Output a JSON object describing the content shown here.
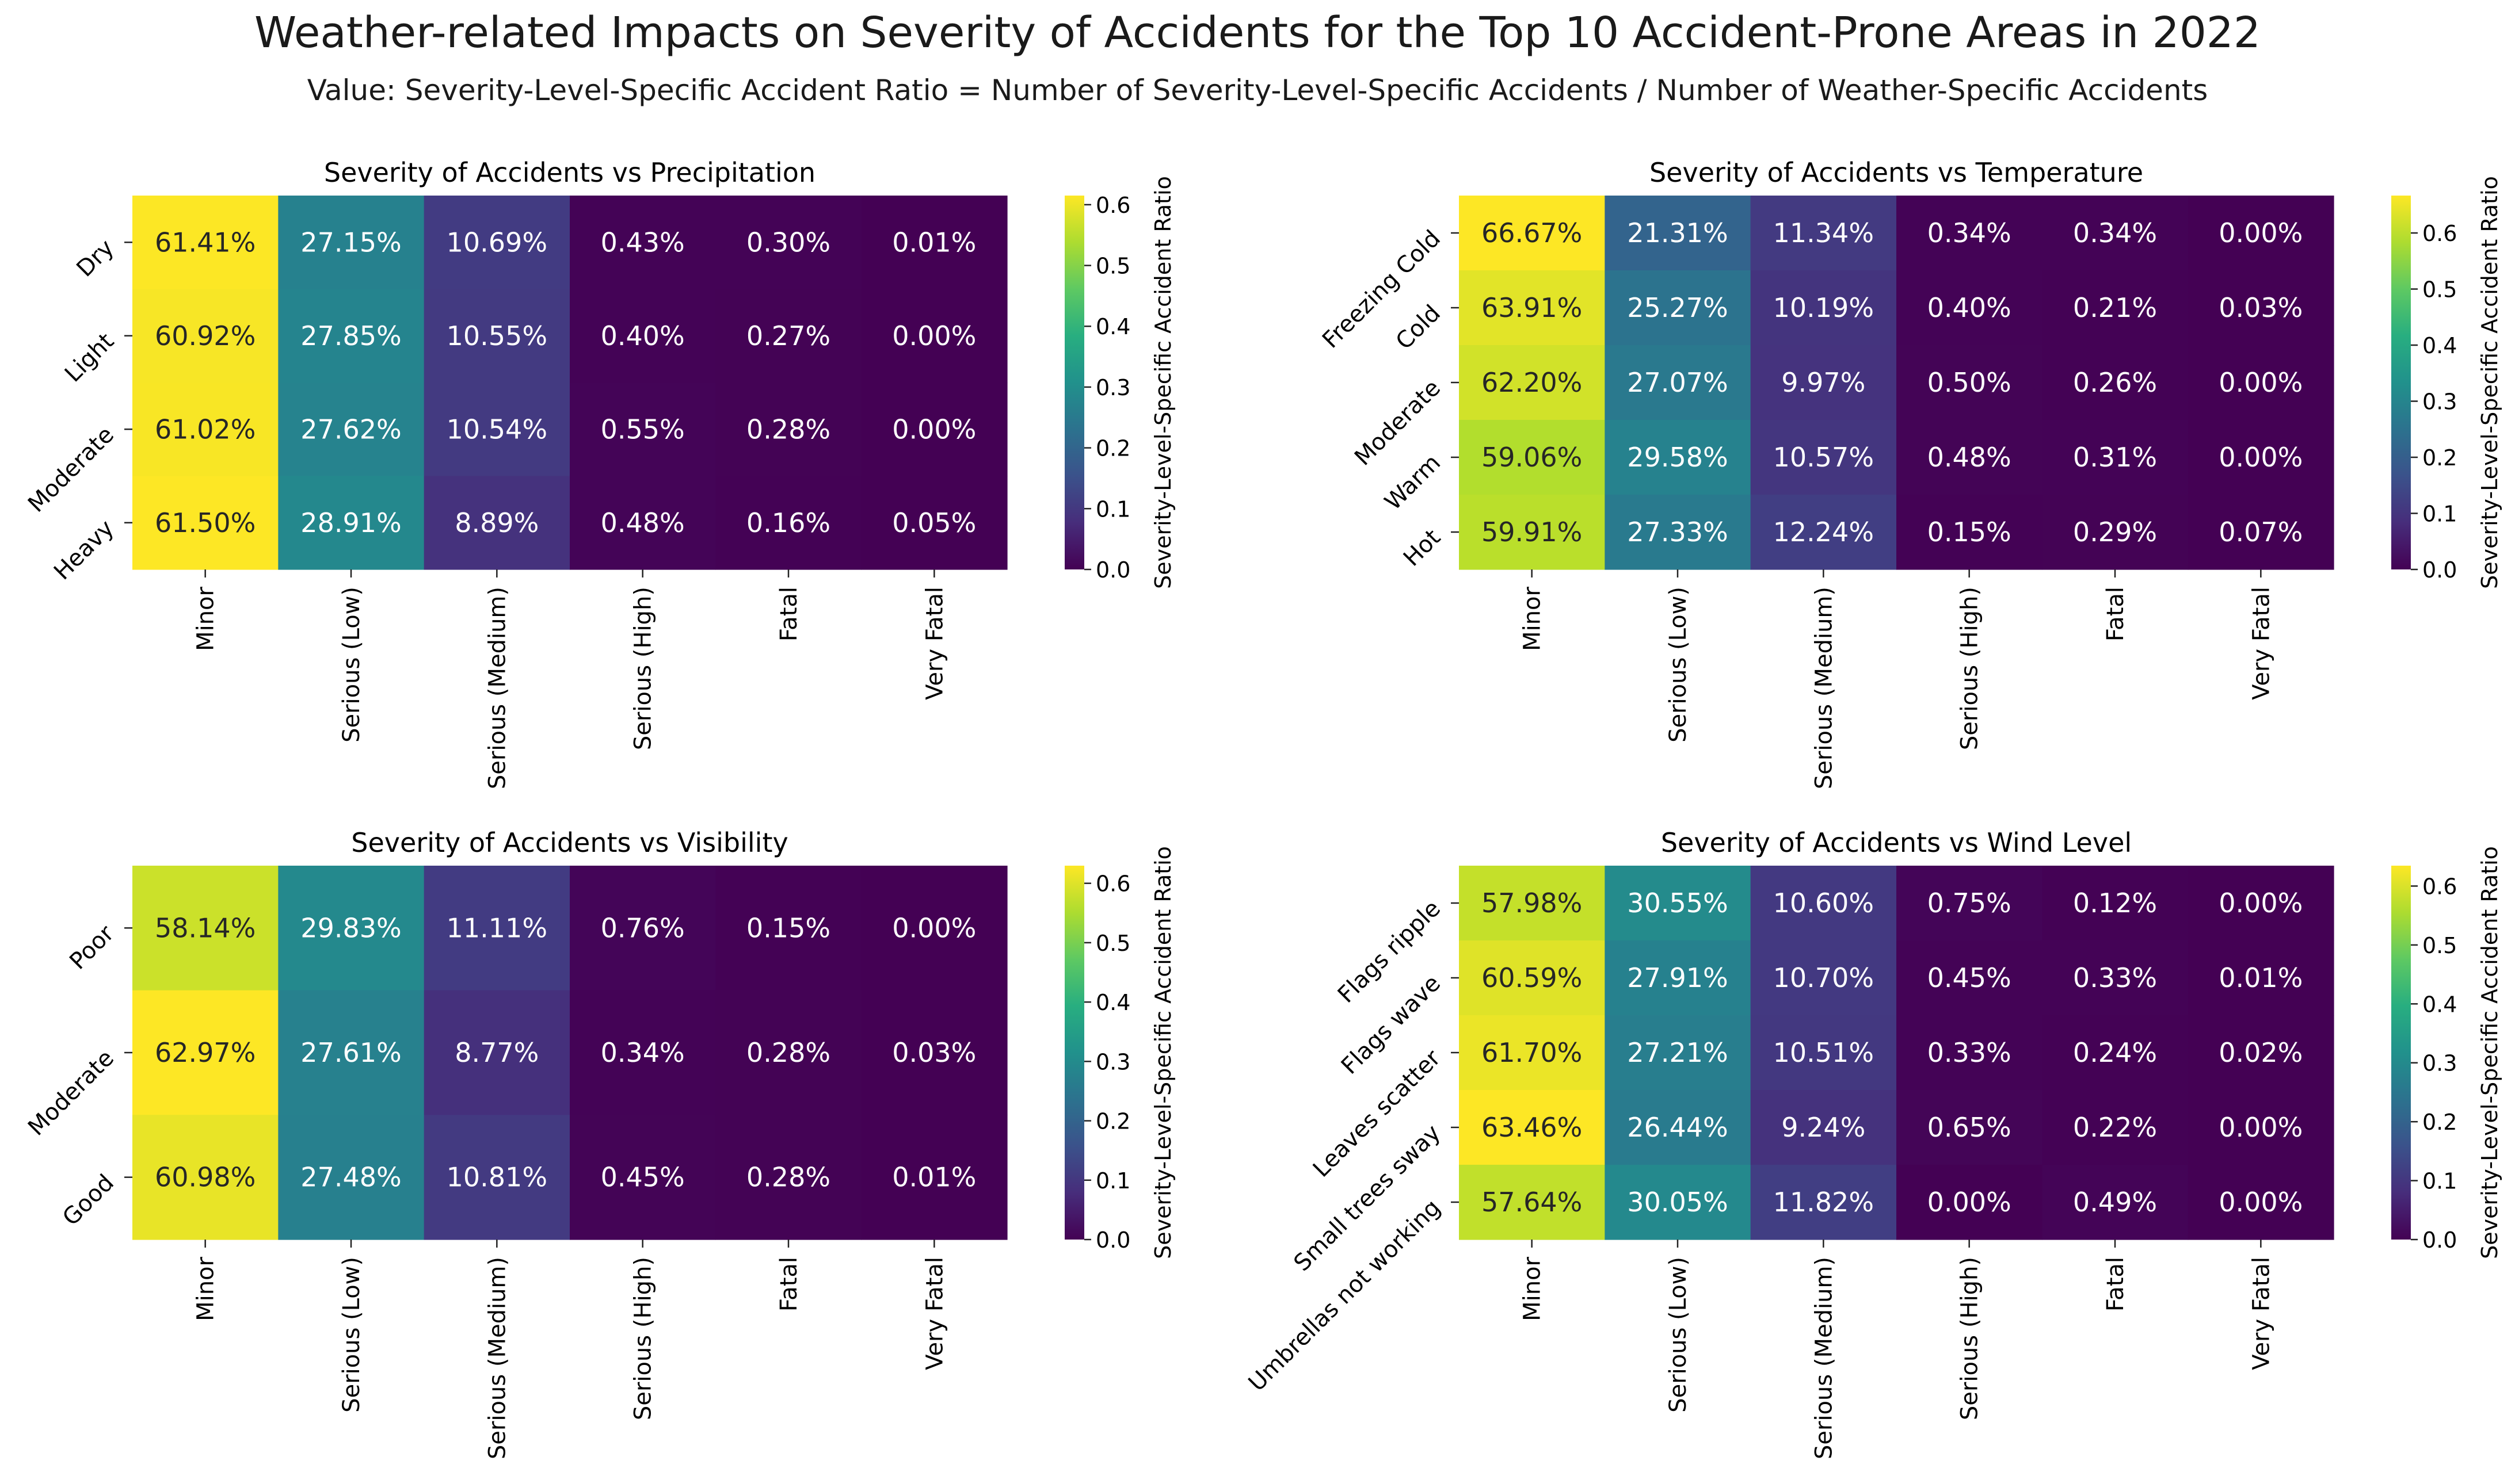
{
  "title": "Weather-related Impacts on Severity of Accidents for the Top 10 Accident-Prone Areas in 2022",
  "subtitle": "Value: Severity-Level-Specific Accident Ratio = Number of Severity-Level-Specific Accidents / Number of Weather-Specific Accidents",
  "chart_data": [
    {
      "type": "heatmap",
      "title": "Severity of Accidents vs Precipitation",
      "columns": [
        "Minor",
        "Serious (Low)",
        "Serious (Medium)",
        "Serious (High)",
        "Fatal",
        "Very Fatal"
      ],
      "rows": [
        "Dry",
        "Light",
        "Moderate",
        "Heavy"
      ],
      "values": [
        [
          0.6141,
          0.2715,
          0.1069,
          0.0043,
          0.003,
          0.0001
        ],
        [
          0.6092,
          0.2785,
          0.1055,
          0.004,
          0.0027,
          0.0
        ],
        [
          0.6102,
          0.2762,
          0.1054,
          0.0055,
          0.0028,
          0.0
        ],
        [
          0.615,
          0.2891,
          0.0889,
          0.0048,
          0.0016,
          0.0005
        ]
      ],
      "labels": [
        [
          "61.41%",
          "27.15%",
          "10.69%",
          "0.43%",
          "0.30%",
          "0.01%"
        ],
        [
          "60.92%",
          "27.85%",
          "10.55%",
          "0.40%",
          "0.27%",
          "0.00%"
        ],
        [
          "61.02%",
          "27.62%",
          "10.54%",
          "0.55%",
          "0.28%",
          "0.00%"
        ],
        [
          "61.50%",
          "28.91%",
          "8.89%",
          "0.48%",
          "0.16%",
          "0.05%"
        ]
      ],
      "colorbar": {
        "label": "Severity-Level-Specific Accident Ratio",
        "min": 0.0,
        "max": 0.615,
        "ticks": [
          "0.0",
          "0.1",
          "0.2",
          "0.3",
          "0.4",
          "0.5",
          "0.6"
        ]
      }
    },
    {
      "type": "heatmap",
      "title": "Severity of Accidents vs Temperature",
      "columns": [
        "Minor",
        "Serious (Low)",
        "Serious (Medium)",
        "Serious (High)",
        "Fatal",
        "Very Fatal"
      ],
      "rows": [
        "Freezing Cold",
        "Cold",
        "Moderate",
        "Warm",
        "Hot"
      ],
      "values": [
        [
          0.6667,
          0.2131,
          0.1134,
          0.0034,
          0.0034,
          0.0
        ],
        [
          0.6391,
          0.2527,
          0.1019,
          0.004,
          0.0021,
          0.0003
        ],
        [
          0.622,
          0.2707,
          0.0997,
          0.005,
          0.0026,
          0.0
        ],
        [
          0.5906,
          0.2958,
          0.1057,
          0.0048,
          0.0031,
          0.0
        ],
        [
          0.5991,
          0.2733,
          0.1224,
          0.0015,
          0.0029,
          0.0007
        ]
      ],
      "labels": [
        [
          "66.67%",
          "21.31%",
          "11.34%",
          "0.34%",
          "0.34%",
          "0.00%"
        ],
        [
          "63.91%",
          "25.27%",
          "10.19%",
          "0.40%",
          "0.21%",
          "0.03%"
        ],
        [
          "62.20%",
          "27.07%",
          "9.97%",
          "0.50%",
          "0.26%",
          "0.00%"
        ],
        [
          "59.06%",
          "29.58%",
          "10.57%",
          "0.48%",
          "0.31%",
          "0.00%"
        ],
        [
          "59.91%",
          "27.33%",
          "12.24%",
          "0.15%",
          "0.29%",
          "0.07%"
        ]
      ],
      "colorbar": {
        "label": "Severity-Level-Specific Accident Ratio",
        "min": 0.0,
        "max": 0.6667,
        "ticks": [
          "0.0",
          "0.1",
          "0.2",
          "0.3",
          "0.4",
          "0.5",
          "0.6"
        ]
      }
    },
    {
      "type": "heatmap",
      "title": "Severity of Accidents vs Visibility",
      "columns": [
        "Minor",
        "Serious (Low)",
        "Serious (Medium)",
        "Serious (High)",
        "Fatal",
        "Very Fatal"
      ],
      "rows": [
        "Poor",
        "Moderate",
        "Good"
      ],
      "values": [
        [
          0.5814,
          0.2983,
          0.1111,
          0.0076,
          0.0015,
          0.0
        ],
        [
          0.6297,
          0.2761,
          0.0877,
          0.0034,
          0.0028,
          0.0003
        ],
        [
          0.6098,
          0.2748,
          0.1081,
          0.0045,
          0.0028,
          0.0001
        ]
      ],
      "labels": [
        [
          "58.14%",
          "29.83%",
          "11.11%",
          "0.76%",
          "0.15%",
          "0.00%"
        ],
        [
          "62.97%",
          "27.61%",
          "8.77%",
          "0.34%",
          "0.28%",
          "0.03%"
        ],
        [
          "60.98%",
          "27.48%",
          "10.81%",
          "0.45%",
          "0.28%",
          "0.01%"
        ]
      ],
      "colorbar": {
        "label": "Severity-Level-Specific Accident Ratio",
        "min": 0.0,
        "max": 0.6297,
        "ticks": [
          "0.0",
          "0.1",
          "0.2",
          "0.3",
          "0.4",
          "0.5",
          "0.6"
        ]
      }
    },
    {
      "type": "heatmap",
      "title": "Severity of Accidents vs Wind Level",
      "columns": [
        "Minor",
        "Serious (Low)",
        "Serious (Medium)",
        "Serious (High)",
        "Fatal",
        "Very Fatal"
      ],
      "rows": [
        "Flags ripple",
        "Flags wave",
        "Leaves scatter",
        "Small trees sway",
        "Umbrellas not working"
      ],
      "values": [
        [
          0.5798,
          0.3055,
          0.106,
          0.0075,
          0.0012,
          0.0
        ],
        [
          0.6059,
          0.2791,
          0.107,
          0.0045,
          0.0033,
          0.0001
        ],
        [
          0.617,
          0.2721,
          0.1051,
          0.0033,
          0.0024,
          0.0002
        ],
        [
          0.6346,
          0.2644,
          0.0924,
          0.0065,
          0.0022,
          0.0
        ],
        [
          0.5764,
          0.3005,
          0.1182,
          0.0,
          0.0049,
          0.0
        ]
      ],
      "labels": [
        [
          "57.98%",
          "30.55%",
          "10.60%",
          "0.75%",
          "0.12%",
          "0.00%"
        ],
        [
          "60.59%",
          "27.91%",
          "10.70%",
          "0.45%",
          "0.33%",
          "0.01%"
        ],
        [
          "61.70%",
          "27.21%",
          "10.51%",
          "0.33%",
          "0.24%",
          "0.02%"
        ],
        [
          "63.46%",
          "26.44%",
          "9.24%",
          "0.65%",
          "0.22%",
          "0.00%"
        ],
        [
          "57.64%",
          "30.05%",
          "11.82%",
          "0.00%",
          "0.49%",
          "0.00%"
        ]
      ],
      "colorbar": {
        "label": "Severity-Level-Specific Accident Ratio",
        "min": 0.0,
        "max": 0.6346,
        "ticks": [
          "0.0",
          "0.1",
          "0.2",
          "0.3",
          "0.4",
          "0.5",
          "0.6"
        ]
      }
    }
  ]
}
